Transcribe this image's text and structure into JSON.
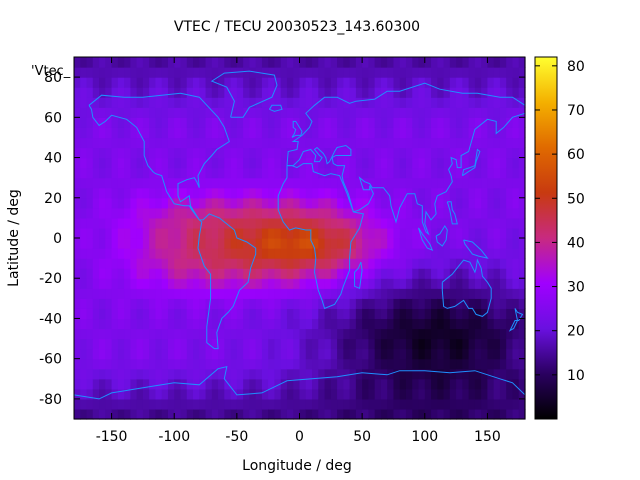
{
  "chart_data": {
    "type": "heatmap",
    "title": "VTEC / TECU 20030523_143.60300",
    "xlabel": "Longitude / deg",
    "ylabel": "Latitude / deg",
    "legend_key": "'Vtec_",
    "xlim": [
      -180,
      180
    ],
    "ylim": [
      -90,
      90
    ],
    "x_ticks": [
      -150,
      -100,
      -50,
      0,
      50,
      100,
      150
    ],
    "y_ticks": [
      -80,
      -60,
      -40,
      -20,
      0,
      20,
      40,
      60,
      80
    ],
    "colorbar": {
      "range": [
        0,
        82
      ],
      "ticks": [
        10,
        20,
        30,
        40,
        50,
        60,
        70,
        80
      ],
      "palette": [
        "#000000",
        "#2a0060",
        "#6a10e0",
        "#a000ff",
        "#c82a80",
        "#c83a10",
        "#e06a00",
        "#f4b000",
        "#ffff30"
      ]
    },
    "map_color": "#1e90ff",
    "grid_step_deg": 5,
    "field_model": {
      "background_tecu": 24,
      "equatorial_crest_tecu": 44,
      "crest_center_lon": -40,
      "crest_center_lat": -2,
      "crest_lon_halfwidth": 95,
      "crest_lat_halfwidth": 24,
      "peak_tecu": 58,
      "southern_low_tecu": 4,
      "southern_low_lon": 110,
      "southern_low_lat": -50
    }
  }
}
